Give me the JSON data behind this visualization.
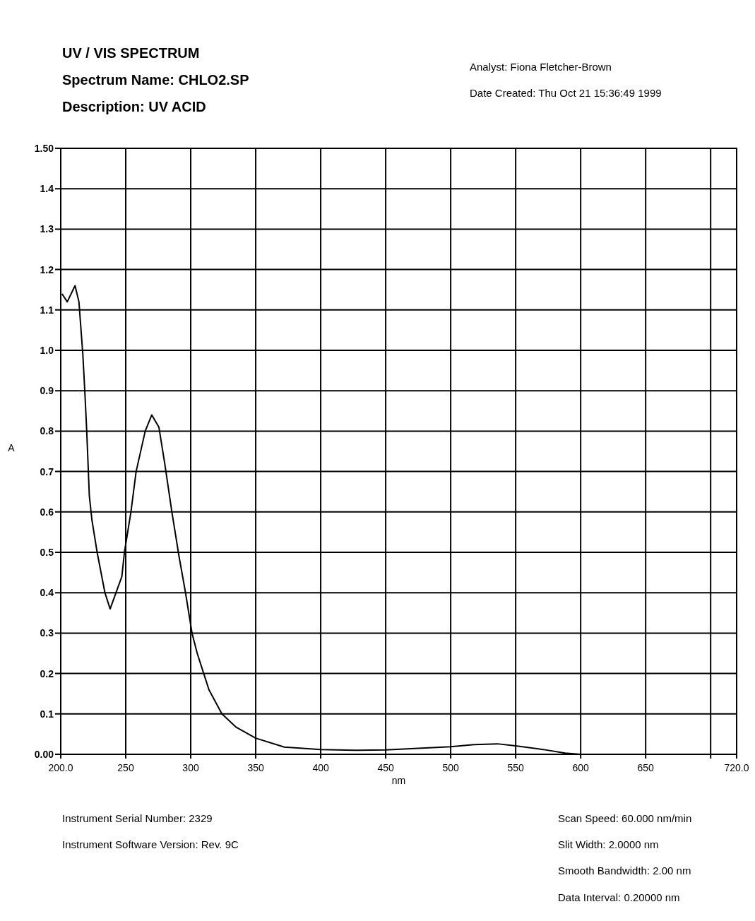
{
  "chart_data": {
    "type": "line",
    "title": "UV / VIS SPECTRUM",
    "xlabel": "nm",
    "ylabel": "A",
    "annotations": [
      "Spectrum Name: CHLO2.SP",
      "Description: UV ACID",
      "Analyst: Fiona Fletcher-Brown",
      "Date Created: Thu Oct 21 15:36:49 1999",
      "Instrument Serial Number: 2329",
      "Instrument Software Version: Rev. 9C",
      "Scan Speed: 60.000 nm/min",
      "Slit Width: 2.0000 nm",
      "Smooth Bandwidth: 2.00 nm",
      "Data Interval: 0.20000 nm"
    ],
    "x": [
      201,
      205,
      211,
      214,
      217,
      218.5,
      220,
      222,
      224,
      228,
      234,
      238,
      247,
      249,
      254,
      258,
      265,
      270,
      275.5,
      280,
      285.5,
      291,
      296,
      301,
      305,
      310,
      314,
      324,
      335,
      350,
      372,
      400,
      426,
      450,
      475,
      500,
      518,
      536,
      550,
      571,
      588,
      600,
      720
    ],
    "series": [
      {
        "color": "#000000",
        "values": [
          1.14,
          1.12,
          1.16,
          1.12,
          0.99,
          0.9,
          0.8,
          0.64,
          0.58,
          0.5,
          0.4,
          0.36,
          0.44,
          0.5,
          0.6,
          0.7,
          0.8,
          0.84,
          0.81,
          0.72,
          0.6,
          0.49,
          0.4,
          0.3,
          0.25,
          0.2,
          0.16,
          0.1,
          0.067,
          0.04,
          0.018,
          0.012,
          0.01,
          0.011,
          0.015,
          0.019,
          0.024,
          0.026,
          0.021,
          0.012,
          0.003,
          0,
          0
        ]
      }
    ],
    "xlim": [
      200,
      720
    ],
    "xticks": [
      {
        "value": 200,
        "label": "200.0"
      },
      250,
      300,
      350,
      400,
      450,
      500,
      550,
      600,
      650,
      {
        "value": 700,
        "label": null
      },
      {
        "value": 720,
        "label": "720.0"
      }
    ],
    "ylim": [
      0,
      1.5
    ],
    "yticks": [
      {
        "value": 0,
        "label": "0.00"
      },
      0.1,
      0.2,
      0.3,
      0.4,
      0.5,
      0.6,
      0.7,
      0.8,
      0.9,
      {
        "value": 1,
        "label": "1.0"
      },
      1.1,
      1.2,
      1.3,
      1.4,
      {
        "value": 1.5,
        "label": "1.50"
      }
    ],
    "grid": true,
    "line_style": "solid",
    "marker": "none"
  }
}
